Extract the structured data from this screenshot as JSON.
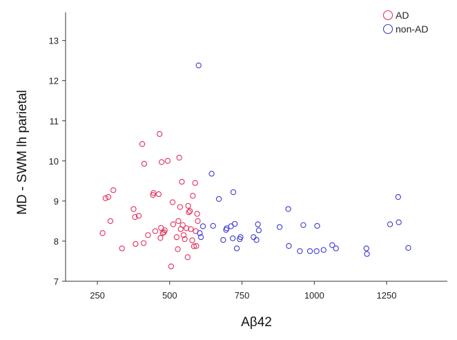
{
  "chart_data": {
    "type": "scatter",
    "xlabel": "Aβ42",
    "ylabel": "MD - SWM lh parietal",
    "xlim": [
      140,
      1460
    ],
    "ylim": [
      7,
      13.7
    ],
    "xticks": [
      250,
      500,
      750,
      1000,
      1250
    ],
    "yticks": [
      7,
      8,
      9,
      10,
      11,
      12,
      13
    ],
    "grid": false,
    "legend_position": "top-right",
    "series": [
      {
        "name": "AD",
        "color": "#e0305a",
        "points": [
          [
            268,
            8.2
          ],
          [
            278,
            9.07
          ],
          [
            288,
            9.1
          ],
          [
            295,
            8.5
          ],
          [
            305,
            9.27
          ],
          [
            335,
            7.82
          ],
          [
            375,
            8.8
          ],
          [
            380,
            8.6
          ],
          [
            382,
            7.93
          ],
          [
            393,
            8.63
          ],
          [
            405,
            10.42
          ],
          [
            410,
            7.95
          ],
          [
            412,
            9.93
          ],
          [
            425,
            8.15
          ],
          [
            442,
            9.15
          ],
          [
            444,
            9.2
          ],
          [
            450,
            8.25
          ],
          [
            462,
            9.17
          ],
          [
            465,
            10.67
          ],
          [
            468,
            8.08
          ],
          [
            470,
            8.33
          ],
          [
            472,
            9.97
          ],
          [
            476,
            8.2
          ],
          [
            480,
            8.22
          ],
          [
            483,
            8.27
          ],
          [
            493,
            10.0
          ],
          [
            505,
            7.37
          ],
          [
            510,
            8.97
          ],
          [
            512,
            8.42
          ],
          [
            524,
            8.1
          ],
          [
            528,
            7.8
          ],
          [
            530,
            8.5
          ],
          [
            533,
            10.08
          ],
          [
            536,
            8.85
          ],
          [
            538,
            8.3
          ],
          [
            542,
            9.48
          ],
          [
            545,
            8.4
          ],
          [
            548,
            8.15
          ],
          [
            552,
            8.05
          ],
          [
            558,
            8.32
          ],
          [
            562,
            7.6
          ],
          [
            564,
            8.88
          ],
          [
            566,
            8.72
          ],
          [
            570,
            8.75
          ],
          [
            573,
            8.3
          ],
          [
            578,
            8.02
          ],
          [
            580,
            9.13
          ],
          [
            584,
            7.87
          ],
          [
            588,
            9.45
          ],
          [
            590,
            8.25
          ],
          [
            592,
            7.88
          ],
          [
            595,
            8.68
          ],
          [
            597,
            8.5
          ]
        ]
      },
      {
        "name": "non-AD",
        "color": "#3a3ad0",
        "points": [
          [
            600,
            12.38
          ],
          [
            604,
            8.2
          ],
          [
            608,
            8.1
          ],
          [
            615,
            8.37
          ],
          [
            645,
            9.68
          ],
          [
            650,
            8.38
          ],
          [
            670,
            9.05
          ],
          [
            685,
            8.03
          ],
          [
            695,
            8.28
          ],
          [
            697,
            8.32
          ],
          [
            712,
            8.37
          ],
          [
            718,
            8.07
          ],
          [
            720,
            9.22
          ],
          [
            725,
            8.43
          ],
          [
            732,
            7.82
          ],
          [
            742,
            8.05
          ],
          [
            745,
            8.1
          ],
          [
            790,
            8.1
          ],
          [
            800,
            8.03
          ],
          [
            805,
            8.42
          ],
          [
            808,
            8.27
          ],
          [
            880,
            8.35
          ],
          [
            910,
            8.8
          ],
          [
            912,
            7.88
          ],
          [
            950,
            7.75
          ],
          [
            962,
            8.4
          ],
          [
            985,
            7.75
          ],
          [
            1008,
            7.75
          ],
          [
            1010,
            8.38
          ],
          [
            1032,
            7.78
          ],
          [
            1062,
            7.9
          ],
          [
            1075,
            7.82
          ],
          [
            1180,
            7.82
          ],
          [
            1182,
            7.68
          ],
          [
            1262,
            8.42
          ],
          [
            1290,
            9.1
          ],
          [
            1292,
            8.47
          ],
          [
            1325,
            7.83
          ]
        ]
      }
    ]
  }
}
